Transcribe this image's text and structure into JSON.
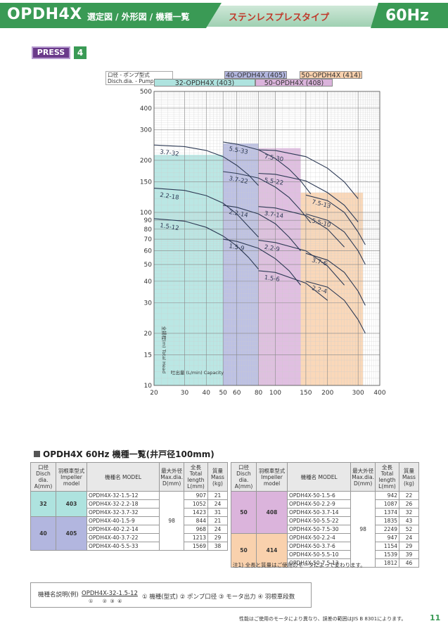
{
  "header": {
    "title": "OPDH4X",
    "subtitle": "選定図 / 外形図 / 機種一覧",
    "type": "ステンレスプレスタイプ",
    "freq": "60Hz"
  },
  "badge": {
    "press": "PRESS",
    "num": "4"
  },
  "legend": {
    "header_l1": "口径 - ポンプ型式",
    "header_l2": "Disch.dia. - Pump model",
    "m403": "32-OPDH4X (403)",
    "m405": "40-OPDH4X (405)",
    "m408": "50-OPDH4X (408)",
    "m414": "50-OPDH4X (414)",
    "c403": "#aee3df",
    "c405": "#b2b6df",
    "c408": "#dbb4dc",
    "c414": "#f9d1ad"
  },
  "chart_data": {
    "type": "line",
    "xscale": "log",
    "yscale": "log",
    "xlim": [
      20,
      400
    ],
    "ylim": [
      10,
      500
    ],
    "xticks": [
      20,
      30,
      40,
      50,
      60,
      80,
      100,
      150,
      200,
      300,
      400
    ],
    "yticks": [
      10,
      15,
      20,
      30,
      40,
      50,
      60,
      70,
      80,
      90,
      100,
      150,
      200,
      300,
      400,
      500
    ],
    "ylabel": "全揚程(m) Total Head",
    "xlabel": "吐出量 (L/min) Capacity",
    "regions": [
      {
        "model": "403",
        "xmin": 20,
        "xmax": 50
      },
      {
        "model": "405",
        "xmin": 50,
        "xmax": 80
      },
      {
        "model": "408",
        "xmin": 80,
        "xmax": 140
      },
      {
        "model": "414",
        "xmin": 140,
        "xmax": 320
      }
    ],
    "series": [
      {
        "name": "3.7-32",
        "x": [
          20,
          30,
          40,
          50,
          60,
          70,
          80
        ],
        "y": [
          245,
          240,
          228,
          210,
          187,
          165,
          143
        ]
      },
      {
        "name": "2.2-18",
        "x": [
          20,
          30,
          40,
          50,
          60,
          70,
          80
        ],
        "y": [
          138,
          134,
          125,
          113,
          98,
          83,
          72
        ]
      },
      {
        "name": "1.5-12",
        "x": [
          20,
          30,
          40,
          50,
          60,
          70,
          80
        ],
        "y": [
          92,
          89,
          82,
          73,
          64,
          55,
          47
        ]
      },
      {
        "name": "5.5-33",
        "x": [
          50,
          60,
          80,
          100,
          120,
          140,
          160
        ],
        "y": [
          255,
          248,
          230,
          205,
          178,
          152,
          128
        ]
      },
      {
        "name": "3.7-22",
        "x": [
          50,
          60,
          80,
          100,
          120,
          140,
          160
        ],
        "y": [
          172,
          168,
          158,
          140,
          122,
          103,
          87
        ]
      },
      {
        "name": "2.2-14",
        "x": [
          50,
          60,
          80,
          100,
          120,
          140
        ],
        "y": [
          110,
          107,
          98,
          86,
          72,
          60
        ]
      },
      {
        "name": "1.5-9",
        "x": [
          50,
          60,
          80,
          100,
          120,
          140
        ],
        "y": [
          70,
          68,
          62,
          54,
          46,
          38
        ]
      },
      {
        "name": "7.5-30",
        "x": [
          80,
          100,
          150,
          200,
          250,
          300
        ],
        "y": [
          230,
          228,
          210,
          180,
          150,
          120
        ]
      },
      {
        "name": "5.5-22",
        "x": [
          80,
          100,
          150,
          200,
          250,
          300
        ],
        "y": [
          168,
          166,
          152,
          130,
          110,
          88
        ]
      },
      {
        "name": "3.7-14",
        "x": [
          80,
          100,
          150,
          200,
          250
        ],
        "y": [
          108,
          106,
          96,
          80,
          63
        ]
      },
      {
        "name": "2.2-9",
        "x": [
          80,
          100,
          150,
          200,
          250
        ],
        "y": [
          69,
          67,
          60,
          49,
          38
        ]
      },
      {
        "name": "1.5-6",
        "x": [
          80,
          100,
          150,
          200
        ],
        "y": [
          46,
          45,
          39,
          31
        ]
      },
      {
        "name": "7.5-13",
        "x": [
          150,
          200,
          250,
          300,
          330
        ],
        "y": [
          126,
          117,
          100,
          77,
          65
        ]
      },
      {
        "name": "5.5-10",
        "x": [
          150,
          200,
          250,
          300,
          330
        ],
        "y": [
          98,
          90,
          77,
          60,
          50
        ]
      },
      {
        "name": "3.7-6",
        "x": [
          150,
          200,
          250,
          300,
          330
        ],
        "y": [
          58,
          53,
          45,
          35,
          29
        ]
      },
      {
        "name": "2.2-4",
        "x": [
          150,
          200,
          250,
          300,
          330
        ],
        "y": [
          40,
          37,
          31,
          24,
          20
        ]
      }
    ]
  },
  "section_title": "OPDH4X 60Hz 機種一覧(井戸径100mm)",
  "table_headers": {
    "dia": "口径 Disch dia. A(mm)",
    "imp": "羽根車型式 Impeller model",
    "model": "機種名 MODEL",
    "maxdia": "最大外径 Max.dia. D(mm)",
    "len": "全長 Total length L(mm)",
    "mass": "質量 Mass (kg)"
  },
  "table_left": {
    "groups": [
      {
        "dia": "32",
        "imp": "403",
        "color": "#aee3df",
        "rows": [
          {
            "model": "OPDH4X-32-1.5-12",
            "len": "907",
            "mass": "21"
          },
          {
            "model": "OPDH4X-32-2.2-18",
            "len": "1052",
            "mass": "24"
          },
          {
            "model": "OPDH4X-32-3.7-32",
            "len": "1423",
            "mass": "31"
          }
        ]
      },
      {
        "dia": "40",
        "imp": "405",
        "color": "#b2b6df",
        "rows": [
          {
            "model": "OPDH4X-40-1.5-9",
            "len": "844",
            "mass": "21"
          },
          {
            "model": "OPDH4X-40-2.2-14",
            "len": "968",
            "mass": "24"
          },
          {
            "model": "OPDH4X-40-3.7-22",
            "len": "1213",
            "mass": "29"
          },
          {
            "model": "OPDH4X-40-5.5-33",
            "len": "1569",
            "mass": "38"
          }
        ]
      }
    ],
    "maxdia": "98"
  },
  "table_right": {
    "groups": [
      {
        "dia": "50",
        "imp": "408",
        "color": "#dbb4dc",
        "rows": [
          {
            "model": "OPDH4X-50-1.5-6",
            "len": "942",
            "mass": "22"
          },
          {
            "model": "OPDH4X-50-2.2-9",
            "len": "1087",
            "mass": "26"
          },
          {
            "model": "OPDH4X-50-3.7-14",
            "len": "1374",
            "mass": "32"
          },
          {
            "model": "OPDH4X-50-5.5-22",
            "len": "1835",
            "mass": "43"
          },
          {
            "model": "OPDH4X-50-7.5-30",
            "len": "2249",
            "mass": "52"
          }
        ]
      },
      {
        "dia": "50",
        "imp": "414",
        "color": "#f9d1ad",
        "rows": [
          {
            "model": "OPDH4X-50-2.2-4",
            "len": "947",
            "mass": "24"
          },
          {
            "model": "OPDH4X-50-3.7-6",
            "len": "1154",
            "mass": "29"
          },
          {
            "model": "OPDH4X-50-5.5-10",
            "len": "1539",
            "mass": "39"
          },
          {
            "model": "OPDH4X-50-7.5-13",
            "len": "1812",
            "mass": "46"
          }
        ]
      }
    ],
    "maxdia": "98"
  },
  "note": "注1) 全長と質量はご使用のモータによって変わります。",
  "explain": {
    "prefix": "機種名説明(例)",
    "example": "OPDH4X-32-1.5-12",
    "nums": "①      ②  ③  ④",
    "items": "① 機種(型式)   ② ポンプ口径   ③ モータ出力   ④ 羽根車段数"
  },
  "footer": "性能はご使用のモータにより異なり、誤差の範囲はJIS B 8301によります。",
  "page": "11"
}
